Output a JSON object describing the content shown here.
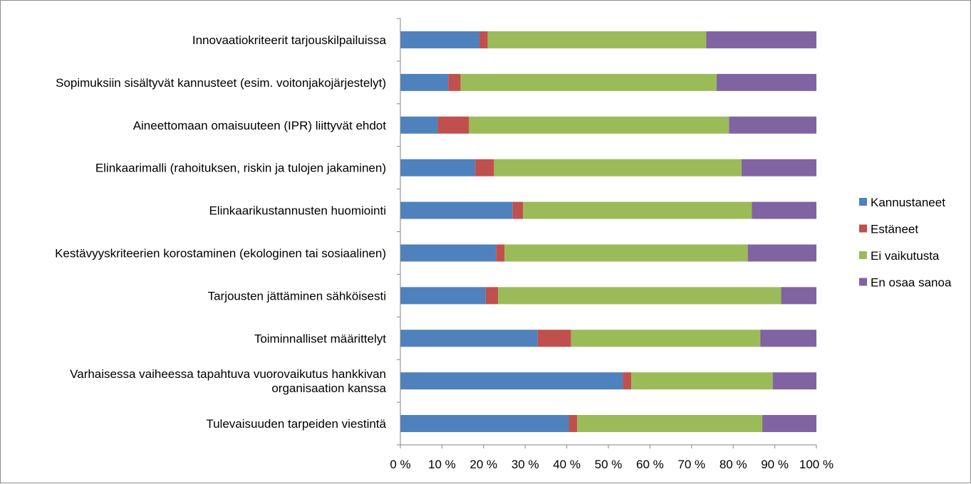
{
  "chart_data": {
    "type": "bar",
    "orientation": "horizontal",
    "stacked": "percent",
    "categories": [
      [
        "Innovaatiokriteerit tarjouskilpailuissa"
      ],
      [
        "Sopimuksiin sisältyvät kannusteet (esim. voitonjakojärjestelyt)"
      ],
      [
        "Aineettomaan omaisuuteen (IPR) liittyvät ehdot"
      ],
      [
        "Elinkaarimalli (rahoituksen, riskin ja tulojen jakaminen)"
      ],
      [
        "Elinkaarikustannusten huomiointi"
      ],
      [
        "Kestävyyskriteerien korostaminen (ekologinen tai sosiaalinen)"
      ],
      [
        "Tarjousten jättäminen sähköisesti"
      ],
      [
        "Toiminnalliset määrittelyt"
      ],
      [
        "Varhaisessa vaiheessa tapahtuva vuorovaikutus hankkivan",
        "organisaation kanssa"
      ],
      [
        "Tulevaisuuden tarpeiden viestintä"
      ]
    ],
    "series": [
      {
        "name": "Kannustaneet",
        "color": "#4f81bd",
        "values": [
          19,
          11.5,
          9,
          18,
          27,
          23,
          20.5,
          33,
          53.5,
          40.5
        ]
      },
      {
        "name": "Estäneet",
        "color": "#c0504d",
        "values": [
          2,
          3,
          7.5,
          4.5,
          2.5,
          2,
          3,
          8,
          2,
          2
        ]
      },
      {
        "name": "Ei vaikutusta",
        "color": "#9bbb59",
        "values": [
          52.5,
          61.5,
          62.5,
          59.5,
          55,
          58.5,
          68,
          45.5,
          34,
          44.5
        ]
      },
      {
        "name": "En osaa sanoa",
        "color": "#8064a2",
        "values": [
          26.5,
          24,
          21,
          18,
          15.5,
          16.5,
          8.5,
          13.5,
          10.5,
          13
        ]
      }
    ],
    "x_ticks": [
      "0 %",
      "10 %",
      "20 %",
      "30 %",
      "40 %",
      "50 %",
      "60 %",
      "70 %",
      "80 %",
      "90 %",
      "100 %"
    ],
    "xlim": [
      0,
      100
    ],
    "grid": false,
    "legend_position": "right"
  }
}
